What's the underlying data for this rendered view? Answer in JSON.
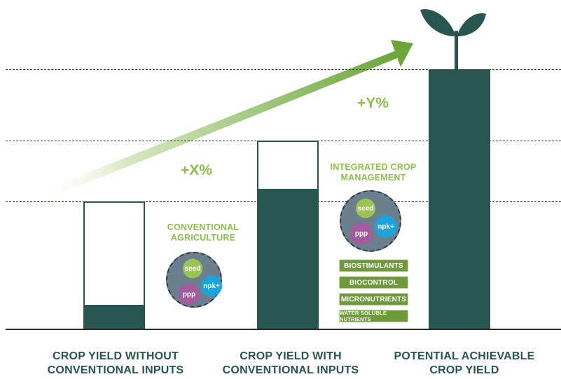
{
  "labels": {
    "conventional": [
      "CONVENTIONAL",
      "AGRICULTURE"
    ],
    "integrated": [
      "INTEGRATED CROP",
      "MANAGEMENT"
    ],
    "x_pct": "+X%",
    "y_pct": "+Y%"
  },
  "bubbles": {
    "seed": "seed",
    "npk": "npk+",
    "ppp": "ppp"
  },
  "tags": [
    "BIOSTIMULANTS",
    "BIOCONTROL",
    "MICRONUTRIENTS",
    "WATER SOLUBLE NUTRIENTS"
  ],
  "categories": [
    [
      "CROP YIELD WITHOUT",
      "CONVENTIONAL INPUTS"
    ],
    [
      "CROP YIELD WITH",
      "CONVENTIONAL INPUTS"
    ],
    [
      "POTENTIAL ACHIEVABLE",
      "CROP YIELD"
    ]
  ],
  "colors": {
    "dark_teal": "#285550",
    "light_green": "#8cbf4a",
    "tag_green": "#6f9a3c",
    "seed": "#9bc453",
    "npk": "#1aa3dc",
    "ppp": "#a35b9e",
    "circle_bg": "#6b7f8c"
  },
  "icons": {
    "sprout": "sprout-icon",
    "arrow": "growth-arrow"
  }
}
